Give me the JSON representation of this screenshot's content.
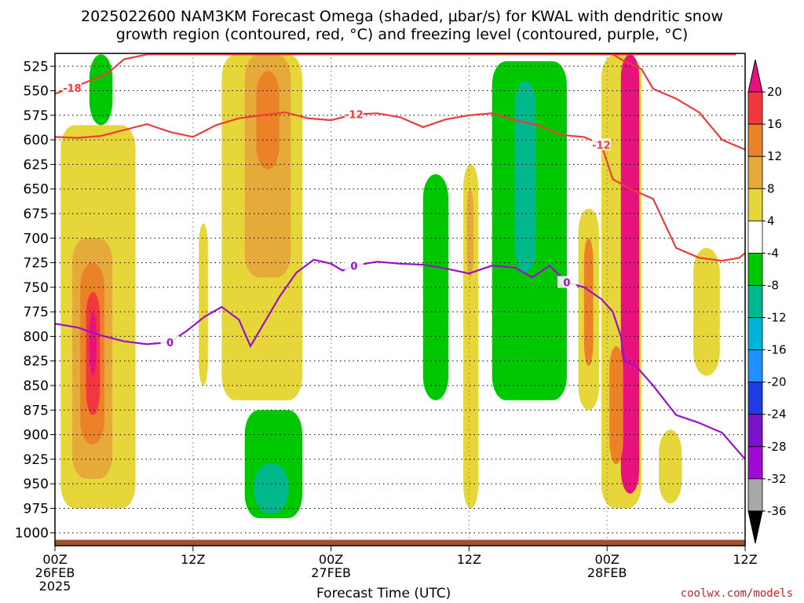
{
  "title_line1": "2025022600 NAM3KM Forecast Omega (shaded, μbar/s) for KWAL with dendritic snow",
  "title_line2": "growth region (contoured, red, °C) and freezing level (contoured, purple, °C)",
  "credit": "coolwx.com/models",
  "chart_data": {
    "type": "heatmap",
    "title": "2025022600 NAM3KM Forecast Omega (shaded, μbar/s) for KWAL with dendritic snow growth region (contoured, red, °C) and freezing level (contoured, purple, °C)",
    "xlabel": "Forecast Time (UTC)",
    "ylabel": "",
    "x_ticks": [
      {
        "hour": 0,
        "label": [
          "00Z",
          "26FEB",
          "2025"
        ]
      },
      {
        "hour": 12,
        "label": [
          "12Z"
        ]
      },
      {
        "hour": 24,
        "label": [
          "00Z",
          "27FEB"
        ]
      },
      {
        "hour": 36,
        "label": [
          "12Z"
        ]
      },
      {
        "hour": 48,
        "label": [
          "00Z",
          "28FEB"
        ]
      },
      {
        "hour": 60,
        "label": [
          "12Z"
        ]
      }
    ],
    "xlim_hours": [
      0,
      60
    ],
    "y_ticks": [
      525,
      550,
      575,
      600,
      625,
      650,
      675,
      700,
      725,
      750,
      775,
      800,
      825,
      850,
      875,
      900,
      925,
      950,
      975,
      1000
    ],
    "ylim_mb": [
      512,
      1013
    ],
    "grid": true,
    "colorbar": {
      "labels": [
        "20",
        "16",
        "12",
        "8",
        "4",
        "-4",
        "-8",
        "-12",
        "-16",
        "-20",
        "-24",
        "-28",
        "-32",
        "-36"
      ],
      "colors": [
        "#e8127e",
        "#f2383e",
        "#ec8228",
        "#e6aa3a",
        "#e6d63a",
        "#ffffff",
        "#00c800",
        "#00b88c",
        "#00b4d8",
        "#1e90ff",
        "#1e3ce0",
        "#7a14c8",
        "#a00ad2",
        "#a8a8a8",
        "#000000"
      ]
    },
    "omega_shading": [
      {
        "x0": 0.5,
        "x1": 7.0,
        "p0": 585,
        "p1": 975,
        "level": 4
      },
      {
        "x0": 1.5,
        "x1": 5.0,
        "p0": 700,
        "p1": 945,
        "level": 8
      },
      {
        "x0": 2.2,
        "x1": 4.3,
        "p0": 725,
        "p1": 910,
        "level": 12
      },
      {
        "x0": 2.7,
        "x1": 3.9,
        "p0": 755,
        "p1": 880,
        "level": 16
      },
      {
        "x0": 3.0,
        "x1": 3.6,
        "p0": 775,
        "p1": 840,
        "level": 20
      },
      {
        "x0": 3.0,
        "x1": 5.0,
        "p0": 513,
        "p1": 585,
        "level": -4
      },
      {
        "x0": 14.5,
        "x1": 21.5,
        "p0": 513,
        "p1": 865,
        "level": 4
      },
      {
        "x0": 16.5,
        "x1": 20.5,
        "p0": 513,
        "p1": 740,
        "level": 8
      },
      {
        "x0": 17.5,
        "x1": 19.5,
        "p0": 530,
        "p1": 630,
        "level": 12
      },
      {
        "x0": 16.5,
        "x1": 21.5,
        "p0": 875,
        "p1": 985,
        "level": -4
      },
      {
        "x0": 17.3,
        "x1": 20.3,
        "p0": 930,
        "p1": 980,
        "level": -8
      },
      {
        "x0": 12.5,
        "x1": 13.3,
        "p0": 685,
        "p1": 850,
        "level": 4
      },
      {
        "x0": 32.0,
        "x1": 34.2,
        "p0": 635,
        "p1": 865,
        "level": -4
      },
      {
        "x0": 35.5,
        "x1": 36.8,
        "p0": 625,
        "p1": 975,
        "level": 4
      },
      {
        "x0": 35.8,
        "x1": 36.4,
        "p0": 650,
        "p1": 740,
        "level": 8
      },
      {
        "x0": 38.0,
        "x1": 44.5,
        "p0": 520,
        "p1": 865,
        "level": -4
      },
      {
        "x0": 40.0,
        "x1": 41.8,
        "p0": 540,
        "p1": 735,
        "level": -8
      },
      {
        "x0": 45.5,
        "x1": 47.3,
        "p0": 670,
        "p1": 875,
        "level": 4
      },
      {
        "x0": 46.0,
        "x1": 46.8,
        "p0": 700,
        "p1": 830,
        "level": 12
      },
      {
        "x0": 47.5,
        "x1": 51.0,
        "p0": 513,
        "p1": 975,
        "level": 4
      },
      {
        "x0": 49.2,
        "x1": 50.8,
        "p0": 513,
        "p1": 960,
        "level": 20
      },
      {
        "x0": 48.2,
        "x1": 49.4,
        "p0": 810,
        "p1": 930,
        "level": 12
      },
      {
        "x0": 52.5,
        "x1": 54.5,
        "p0": 895,
        "p1": 970,
        "level": 4
      },
      {
        "x0": 55.5,
        "x1": 57.8,
        "p0": 710,
        "p1": 840,
        "level": 4
      }
    ],
    "contours": [
      {
        "name": "-18",
        "color": "#ee3b3b",
        "label": "-18",
        "points": [
          [
            0,
            553
          ],
          [
            1.5,
            547
          ],
          [
            3,
            540
          ],
          [
            4.5,
            533
          ],
          [
            6,
            518
          ],
          [
            8,
            513
          ],
          [
            59.2,
            513
          ]
        ]
      },
      {
        "name": "-18b",
        "color": "#ee3b3b",
        "label": "-18",
        "points": [
          [
            48.5,
            513
          ],
          [
            49.5,
            520
          ],
          [
            51,
            528
          ],
          [
            52,
            548
          ],
          [
            54,
            558
          ],
          [
            56,
            572
          ],
          [
            58,
            600
          ],
          [
            60,
            610
          ]
        ]
      },
      {
        "name": "-12",
        "color": "#ee3b3b",
        "label": "-12",
        "points": [
          [
            0,
            597
          ],
          [
            2,
            598
          ],
          [
            4,
            596
          ],
          [
            6,
            590
          ],
          [
            8,
            584
          ],
          [
            10,
            592
          ],
          [
            12,
            597
          ],
          [
            14,
            585
          ],
          [
            16,
            578
          ],
          [
            18,
            575
          ],
          [
            20,
            572
          ],
          [
            22,
            578
          ],
          [
            24,
            580
          ],
          [
            26,
            574
          ],
          [
            28,
            573
          ],
          [
            30,
            577
          ],
          [
            32,
            587
          ],
          [
            34,
            579
          ],
          [
            36,
            575
          ],
          [
            38,
            573
          ],
          [
            40,
            580
          ],
          [
            42,
            585
          ],
          [
            44,
            595
          ],
          [
            46,
            597
          ],
          [
            47.5,
            605
          ],
          [
            48.5,
            640
          ],
          [
            50,
            650
          ],
          [
            52,
            660
          ],
          [
            54,
            710
          ],
          [
            56,
            720
          ],
          [
            58,
            723
          ],
          [
            59.5,
            720
          ],
          [
            60,
            715
          ]
        ]
      },
      {
        "name": "freezing",
        "color": "#9a12c8",
        "label": "0",
        "points": [
          [
            0,
            787
          ],
          [
            2,
            791
          ],
          [
            4,
            799
          ],
          [
            6,
            805
          ],
          [
            8,
            808
          ],
          [
            10,
            806
          ],
          [
            11.5,
            794
          ],
          [
            13,
            780
          ],
          [
            14.5,
            770
          ],
          [
            16,
            783
          ],
          [
            17,
            810
          ],
          [
            18,
            790
          ],
          [
            19.5,
            760
          ],
          [
            21,
            735
          ],
          [
            22.5,
            722
          ],
          [
            24,
            726
          ],
          [
            25,
            733
          ],
          [
            26,
            728
          ],
          [
            28,
            724
          ],
          [
            30,
            726
          ],
          [
            32,
            727
          ],
          [
            34,
            731
          ],
          [
            36,
            736
          ],
          [
            38,
            728
          ],
          [
            40,
            730
          ],
          [
            41.5,
            740
          ],
          [
            43,
            728
          ],
          [
            44.5,
            745
          ],
          [
            46,
            750
          ],
          [
            47.5,
            762
          ],
          [
            48.5,
            775
          ],
          [
            49.2,
            800
          ],
          [
            49.5,
            825
          ],
          [
            50.5,
            830
          ],
          [
            52,
            850
          ],
          [
            54,
            880
          ],
          [
            56,
            888
          ],
          [
            58,
            898
          ],
          [
            60,
            925
          ]
        ]
      }
    ],
    "terrain_pressure_mb": 1007
  }
}
